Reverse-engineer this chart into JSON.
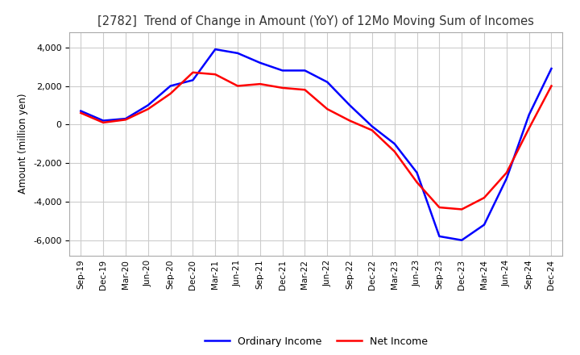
{
  "title": "[2782]  Trend of Change in Amount (YoY) of 12Mo Moving Sum of Incomes",
  "ylabel": "Amount (million yen)",
  "ylim": [
    -6800,
    4800
  ],
  "yticks": [
    -6000,
    -4000,
    -2000,
    0,
    2000,
    4000
  ],
  "background_color": "#ffffff",
  "grid_color": "#cccccc",
  "ordinary_income_color": "#0000ff",
  "net_income_color": "#ff0000",
  "legend_ordinary": "Ordinary Income",
  "legend_net": "Net Income",
  "x_labels": [
    "Sep-19",
    "Dec-19",
    "Mar-20",
    "Jun-20",
    "Sep-20",
    "Dec-20",
    "Mar-21",
    "Jun-21",
    "Sep-21",
    "Dec-21",
    "Mar-22",
    "Jun-22",
    "Sep-22",
    "Dec-22",
    "Mar-23",
    "Jun-23",
    "Sep-23",
    "Dec-23",
    "Mar-24",
    "Jun-24",
    "Sep-24",
    "Dec-24"
  ],
  "ordinary_income": [
    700,
    200,
    300,
    1000,
    2000,
    2300,
    3900,
    3700,
    3200,
    2800,
    2800,
    2200,
    1000,
    -100,
    -1000,
    -2500,
    -5800,
    -6000,
    -5200,
    -2800,
    500,
    2900
  ],
  "net_income": [
    600,
    100,
    250,
    800,
    1600,
    2700,
    2600,
    2000,
    2100,
    1900,
    1800,
    800,
    200,
    -300,
    -1400,
    -3000,
    -4300,
    -4400,
    -3800,
    -2500,
    -200,
    2000
  ]
}
